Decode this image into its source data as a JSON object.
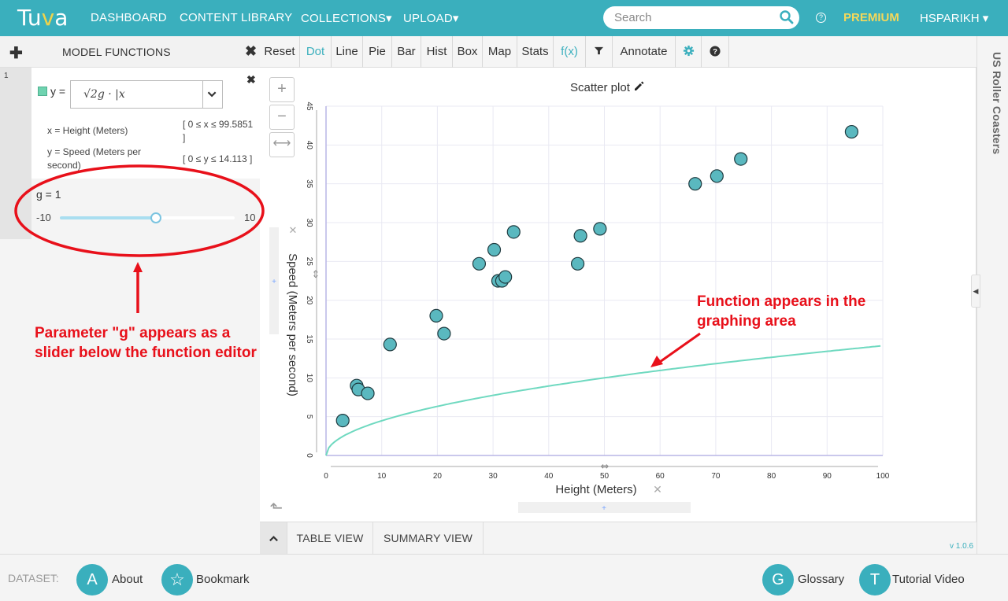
{
  "app": {
    "logo": "Tuva",
    "nav": [
      "DASHBOARD",
      "CONTENT LIBRARY",
      "COLLECTIONS▾",
      "UPLOAD▾"
    ],
    "search_placeholder": "Search",
    "premium": "PREMIUM",
    "user": "HSPARIKH ▾",
    "help_icon": "question-circle-icon"
  },
  "left_panel": {
    "title": "MODEL FUNCTIONS",
    "function_number": "1",
    "function_label": "y =",
    "function_expr": "√2g · |x",
    "x_var": "x = Height (Meters)",
    "x_range_line1": "[ 0 ≤ x ≤ 99.5851",
    "x_range_line2": "]",
    "y_var": "y = Speed (Meters per second)",
    "y_range": "[ 0 ≤ y ≤ 14.113 ]",
    "param_label": "g =  1",
    "param_min": "-10",
    "param_max": "10",
    "param_value": 1,
    "param_lo": -10,
    "param_hi": 10,
    "swatch_color": "#6fd3b0"
  },
  "toolbar": {
    "buttons": [
      "Reset",
      "Dot",
      "Line",
      "Pie",
      "Bar",
      "Hist",
      "Box",
      "Map",
      "Stats",
      "f(x)",
      "filter-icon",
      "Annotate",
      "gear-icon",
      "help-icon"
    ],
    "active": "Dot"
  },
  "graph": {
    "title": "Scatter plot"
  },
  "right_rail": {
    "title": "US Roller Coasters"
  },
  "bottom_tabs": [
    "TABLE VIEW",
    "SUMMARY VIEW"
  ],
  "version": "v 1.0.6",
  "footer": {
    "dataset_label": "DATASET:",
    "buttons": [
      {
        "letter": "A",
        "label": "About"
      },
      {
        "letter": "☆",
        "label": "Bookmark"
      },
      {
        "letter": "G",
        "label": "Glossary"
      },
      {
        "letter": "T",
        "label": "Tutorial Video"
      }
    ]
  },
  "annotations": {
    "left_note": "Parameter \"g\" appears as a slider below the function editor",
    "right_note": "Function appears in the graphing area",
    "color": "#e8101a"
  },
  "chart_data": {
    "type": "scatter",
    "title": "Scatter plot",
    "xlabel": "Height (Meters)",
    "ylabel": "Speed (Meters per second)",
    "xlim": [
      0,
      100
    ],
    "ylim": [
      0,
      45
    ],
    "xticks": [
      0,
      10,
      20,
      30,
      40,
      50,
      60,
      70,
      80,
      90,
      100
    ],
    "yticks": [
      0,
      5,
      10,
      15,
      20,
      25,
      30,
      35,
      40,
      45
    ],
    "points": [
      {
        "x": 3,
        "y": 4.5
      },
      {
        "x": 5.5,
        "y": 9
      },
      {
        "x": 5.8,
        "y": 8.5
      },
      {
        "x": 7.5,
        "y": 8
      },
      {
        "x": 11.5,
        "y": 14.3
      },
      {
        "x": 19.8,
        "y": 18
      },
      {
        "x": 21.2,
        "y": 15.7
      },
      {
        "x": 27.5,
        "y": 24.7
      },
      {
        "x": 30.2,
        "y": 26.5
      },
      {
        "x": 30.9,
        "y": 22.5
      },
      {
        "x": 31.6,
        "y": 22.5
      },
      {
        "x": 32.2,
        "y": 23
      },
      {
        "x": 33.7,
        "y": 28.8
      },
      {
        "x": 45.2,
        "y": 24.7
      },
      {
        "x": 45.7,
        "y": 28.3
      },
      {
        "x": 49.2,
        "y": 29.2
      },
      {
        "x": 66.3,
        "y": 35
      },
      {
        "x": 70.2,
        "y": 36
      },
      {
        "x": 74.5,
        "y": 38.2
      },
      {
        "x": 94.4,
        "y": 41.7
      }
    ],
    "function": {
      "expr": "sqrt(2*g*x)",
      "g": 1,
      "x_range": [
        0,
        99.5851
      ]
    },
    "point_color": "#5ab8bf",
    "curve_color": "#6fd9c0"
  }
}
